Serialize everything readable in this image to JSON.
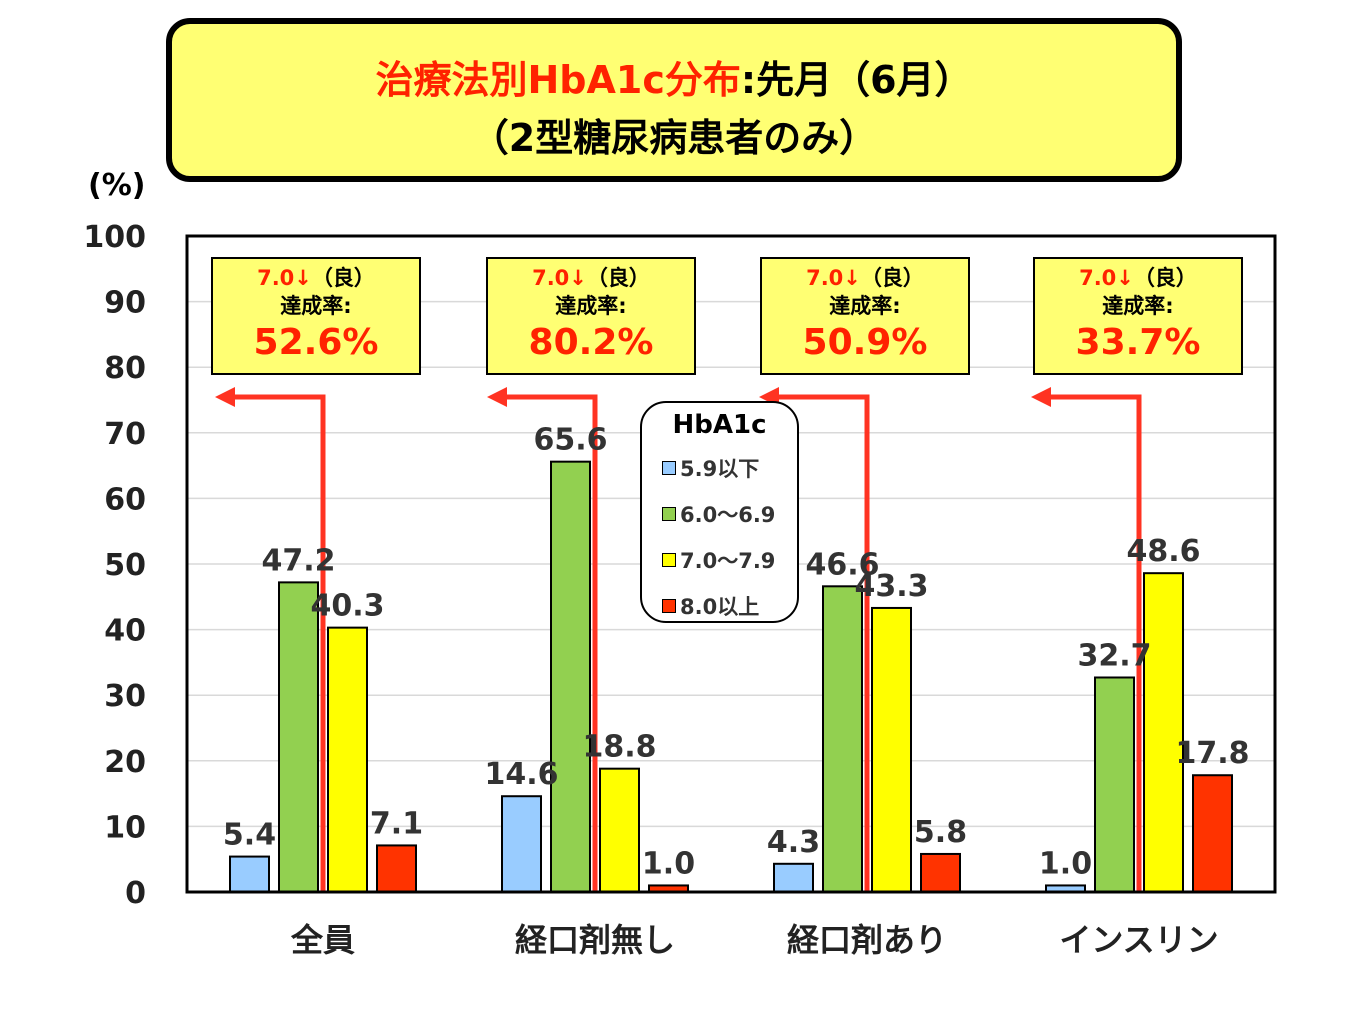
{
  "title": {
    "line1_red": "治療法別HbA1c分布",
    "line1_black": ":先月（6月）",
    "line2": "（2型糖尿病患者のみ）"
  },
  "unit_label": "(%)",
  "achievement": [
    {
      "condition": "7.0↓",
      "suffix": "（良）",
      "label": "達成率:",
      "value": "52.6%"
    },
    {
      "condition": "7.0↓",
      "suffix": "（良）",
      "label": "達成率:",
      "value": "80.2%"
    },
    {
      "condition": "7.0↓",
      "suffix": "（良）",
      "label": "達成率:",
      "value": "50.9%"
    },
    {
      "condition": "7.0↓",
      "suffix": "（良）",
      "label": "達成率:",
      "value": "33.7%"
    }
  ],
  "legend_title": "HbA1c",
  "chart_data": {
    "type": "bar",
    "categories": [
      "全員",
      "経口剤無し",
      "経口剤あり",
      "インスリン"
    ],
    "series": [
      {
        "name": "5.9以下",
        "color": "#99ccff",
        "values": [
          5.4,
          14.6,
          4.3,
          1.0
        ],
        "labels": [
          "5.4",
          "14.6",
          "4.3",
          "1.0"
        ]
      },
      {
        "name": "6.0～6.9",
        "color": "#92d050",
        "values": [
          47.2,
          65.6,
          46.6,
          32.7
        ],
        "labels": [
          "47.2",
          "65.6",
          "46.6",
          "32.7"
        ]
      },
      {
        "name": "7.0～7.9",
        "color": "#ffff00",
        "values": [
          40.3,
          18.8,
          43.3,
          48.6
        ],
        "labels": [
          "40.3",
          "18.8",
          "43.3",
          "48.6"
        ]
      },
      {
        "name": "8.0以上",
        "color": "#ff3300",
        "values": [
          7.1,
          1.0,
          5.8,
          17.8
        ],
        "labels": [
          "7.1",
          "1.0",
          "5.8",
          "17.8"
        ]
      }
    ],
    "yticks": [
      "0",
      "10",
      "20",
      "30",
      "40",
      "50",
      "60",
      "70",
      "80",
      "90",
      "100"
    ],
    "ylim": [
      0,
      100
    ],
    "grid": true,
    "legend_position": "top-center"
  },
  "colors": {
    "arrow": "#ff3322",
    "highlight_bg": "#ffff73",
    "accent_red": "#ff2200"
  }
}
